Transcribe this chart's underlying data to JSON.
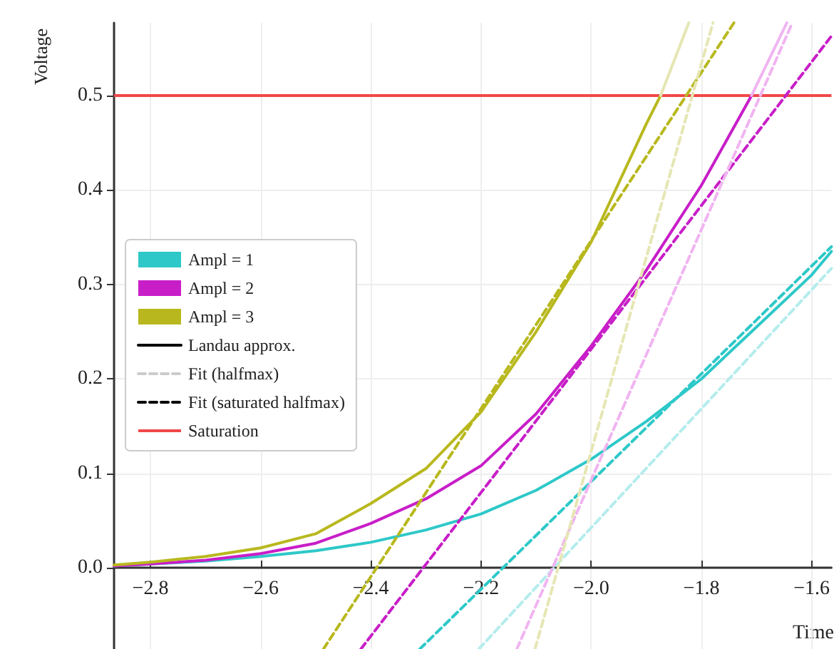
{
  "chart_data": {
    "type": "line",
    "xlabel": "Time",
    "ylabel": "Voltage",
    "xlim": [
      -2.866,
      -1.564
    ],
    "ylim": [
      -0.086,
      0.577
    ],
    "xticks": [
      {
        "value": -2.8,
        "label": "−2.8"
      },
      {
        "value": -2.6,
        "label": "−2.6"
      },
      {
        "value": -2.4,
        "label": "−2.4"
      },
      {
        "value": -2.2,
        "label": "−2.2"
      },
      {
        "value": -2.0,
        "label": "−2.0"
      },
      {
        "value": -1.8,
        "label": "−1.8"
      },
      {
        "value": -1.6,
        "label": "−1.6"
      }
    ],
    "yticks": [
      {
        "value": 0,
        "label": "0.0"
      },
      {
        "value": 0.1,
        "label": "0.1"
      },
      {
        "value": 0.2,
        "label": "0.2"
      },
      {
        "value": 0.3,
        "label": "0.3"
      },
      {
        "value": 0.4,
        "label": "0.4"
      },
      {
        "value": 0.5,
        "label": "0.5"
      }
    ],
    "grid": true,
    "legend": "left",
    "marker": "none",
    "series": [
      {
        "name": "Ampl = 1",
        "color": "#2ec8c8",
        "line_style": "solid",
        "x": [
          -2.866,
          -2.8,
          -2.7,
          -2.6,
          -2.5,
          -2.4,
          -2.3,
          -2.2,
          -2.1,
          -2.0,
          -1.9,
          -1.8,
          -1.7,
          -1.6,
          -1.564
        ],
        "values": [
          0.002,
          0.004,
          0.007,
          0.012,
          0.018,
          0.027,
          0.04,
          0.057,
          0.082,
          0.115,
          0.155,
          0.2,
          0.255,
          0.31,
          0.335
        ]
      },
      {
        "name": "Ampl = 2",
        "color": "#c81ec8",
        "line_style": "solid",
        "x": [
          -2.866,
          -2.8,
          -2.7,
          -2.6,
          -2.5,
          -2.4,
          -2.3,
          -2.2,
          -2.1,
          -2.0,
          -1.9,
          -1.8,
          -1.709
        ],
        "values": [
          0.002,
          0.004,
          0.008,
          0.015,
          0.026,
          0.047,
          0.073,
          0.108,
          0.163,
          0.235,
          0.315,
          0.405,
          0.5
        ]
      },
      {
        "name": "Ampl = 3",
        "color": "#b8b81e",
        "line_style": "solid",
        "x": [
          -2.866,
          -2.8,
          -2.7,
          -2.6,
          -2.5,
          -2.4,
          -2.3,
          -2.2,
          -2.1,
          -2.0,
          -1.9,
          -1.874
        ],
        "values": [
          0.003,
          0.006,
          0.012,
          0.021,
          0.036,
          0.068,
          0.105,
          0.165,
          0.25,
          0.345,
          0.47,
          0.5
        ]
      },
      {
        "color": "#e6e6b4",
        "line_style": "solid",
        "x": [
          -1.874,
          -1.823
        ],
        "values": [
          0.5,
          0.577
        ]
      },
      {
        "color": "#f0b4f0",
        "line_style": "solid",
        "x": [
          -1.709,
          -1.645
        ],
        "values": [
          0.5,
          0.577
        ]
      },
      {
        "color": "#2ec8c8",
        "line_style": "dashed",
        "x": [
          -2.311,
          -1.564
        ],
        "values": [
          -0.086,
          0.34
        ]
      },
      {
        "color": "#c81ec8",
        "line_style": "dashed",
        "x": [
          -2.418,
          -1.564
        ],
        "values": [
          -0.086,
          0.563
        ]
      },
      {
        "color": "#b8b81e",
        "line_style": "dashed",
        "x": [
          -2.486,
          -1.741
        ],
        "values": [
          -0.086,
          0.577
        ]
      },
      {
        "color": "#b4ecec",
        "line_style": "dashed",
        "x": [
          -2.204,
          -1.564
        ],
        "values": [
          -0.086,
          0.317
        ]
      },
      {
        "color": "#f0b4f0",
        "line_style": "dashed",
        "x": [
          -2.135,
          -1.635
        ],
        "values": [
          -0.086,
          0.577
        ]
      },
      {
        "color": "#e6e6b4",
        "line_style": "dashed",
        "x": [
          -2.102,
          -1.779
        ],
        "values": [
          -0.086,
          0.577
        ]
      },
      {
        "name": "Landau approx.",
        "color": "#000000",
        "line_style": "solid",
        "values": [
          null
        ]
      },
      {
        "name": "Fit (halfmax)",
        "color": "#cccccc",
        "line_style": "dashed",
        "values": [
          null
        ]
      },
      {
        "name": "Fit (saturated halfmax)",
        "color": "#000000",
        "line_style": "dashed",
        "values": [
          null
        ]
      }
    ],
    "ref_lines": [
      {
        "axis": "y",
        "value": 0.5,
        "label": "Saturation",
        "color": "#f04848",
        "line_style": "solid"
      }
    ]
  }
}
